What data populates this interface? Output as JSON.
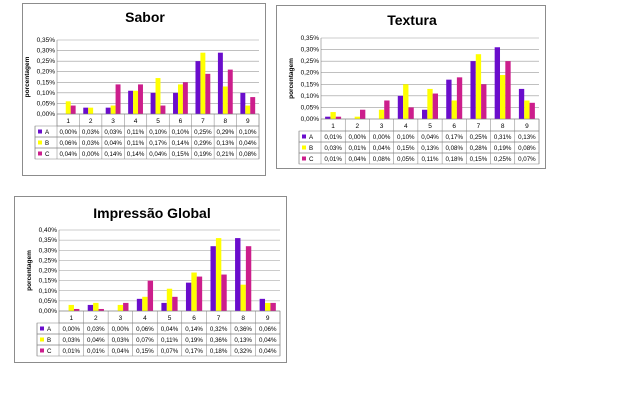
{
  "colors": {
    "A": "#6a0dcc",
    "B": "#ffff00",
    "C": "#cc1e8c"
  },
  "chart_data": [
    {
      "type": "bar",
      "title": "Sabor",
      "ylabel": "porcentagem",
      "categories": [
        "1",
        "2",
        "3",
        "4",
        "5",
        "6",
        "7",
        "8",
        "9"
      ],
      "yticks": [
        "0,00%",
        "0,05%",
        "0,10%",
        "0,15%",
        "0,20%",
        "0,25%",
        "0,30%",
        "0,35%"
      ],
      "ylim": [
        0,
        0.35
      ],
      "grid": true,
      "series": [
        {
          "name": "A",
          "values": [
            0.0,
            0.03,
            0.03,
            0.11,
            0.1,
            0.1,
            0.25,
            0.29,
            0.1
          ],
          "labels": [
            "0,00%",
            "0,03%",
            "0,03%",
            "0,11%",
            "0,10%",
            "0,10%",
            "0,25%",
            "0,29%",
            "0,10%"
          ]
        },
        {
          "name": "B",
          "values": [
            0.06,
            0.03,
            0.04,
            0.11,
            0.17,
            0.14,
            0.29,
            0.13,
            0.04
          ],
          "labels": [
            "0,06%",
            "0,03%",
            "0,04%",
            "0,11%",
            "0,17%",
            "0,14%",
            "0,29%",
            "0,13%",
            "0,04%"
          ]
        },
        {
          "name": "C",
          "values": [
            0.04,
            0.0,
            0.14,
            0.14,
            0.04,
            0.15,
            0.19,
            0.21,
            0.08
          ],
          "labels": [
            "0,04%",
            "0,00%",
            "0,14%",
            "0,14%",
            "0,04%",
            "0,15%",
            "0,19%",
            "0,21%",
            "0,08%"
          ]
        }
      ]
    },
    {
      "type": "bar",
      "title": "Textura",
      "ylabel": "porcentagem",
      "categories": [
        "1",
        "2",
        "3",
        "4",
        "5",
        "6",
        "7",
        "8",
        "9"
      ],
      "yticks": [
        "0,00%",
        "0,05%",
        "0,10%",
        "0,15%",
        "0,20%",
        "0,25%",
        "0,30%",
        "0,35%"
      ],
      "ylim": [
        0,
        0.35
      ],
      "grid": true,
      "series": [
        {
          "name": "A",
          "values": [
            0.01,
            0.0,
            0.0,
            0.1,
            0.04,
            0.17,
            0.25,
            0.31,
            0.13
          ],
          "labels": [
            "0,01%",
            "0,00%",
            "0,00%",
            "0,10%",
            "0,04%",
            "0,17%",
            "0,25%",
            "0,31%",
            "0,13%"
          ]
        },
        {
          "name": "B",
          "values": [
            0.03,
            0.01,
            0.04,
            0.15,
            0.13,
            0.08,
            0.28,
            0.19,
            0.08
          ],
          "labels": [
            "0,03%",
            "0,01%",
            "0,04%",
            "0,15%",
            "0,13%",
            "0,08%",
            "0,28%",
            "0,19%",
            "0,08%"
          ]
        },
        {
          "name": "C",
          "values": [
            0.01,
            0.04,
            0.08,
            0.05,
            0.11,
            0.18,
            0.15,
            0.25,
            0.07
          ],
          "labels": [
            "0,01%",
            "0,04%",
            "0,08%",
            "0,05%",
            "0,11%",
            "0,18%",
            "0,15%",
            "0,25%",
            "0,07%"
          ]
        }
      ]
    },
    {
      "type": "bar",
      "title": "Impressão Global",
      "ylabel": "porcentagem",
      "categories": [
        "1",
        "2",
        "3",
        "4",
        "5",
        "6",
        "7",
        "8",
        "9"
      ],
      "yticks": [
        "0,00%",
        "0,05%",
        "0,10%",
        "0,15%",
        "0,20%",
        "0,25%",
        "0,30%",
        "0,35%",
        "0,40%"
      ],
      "ylim": [
        0,
        0.4
      ],
      "grid": true,
      "series": [
        {
          "name": "A",
          "values": [
            0.0,
            0.03,
            0.0,
            0.06,
            0.04,
            0.14,
            0.32,
            0.36,
            0.06
          ],
          "labels": [
            "0,00%",
            "0,03%",
            "0,00%",
            "0,06%",
            "0,04%",
            "0,14%",
            "0,32%",
            "0,36%",
            "0,06%"
          ]
        },
        {
          "name": "B",
          "values": [
            0.03,
            0.04,
            0.03,
            0.07,
            0.11,
            0.19,
            0.36,
            0.13,
            0.04
          ],
          "labels": [
            "0,03%",
            "0,04%",
            "0,03%",
            "0,07%",
            "0,11%",
            "0,19%",
            "0,36%",
            "0,13%",
            "0,04%"
          ]
        },
        {
          "name": "C",
          "values": [
            0.01,
            0.01,
            0.04,
            0.15,
            0.07,
            0.17,
            0.18,
            0.32,
            0.04
          ],
          "labels": [
            "0,01%",
            "0,01%",
            "0,04%",
            "0,15%",
            "0,07%",
            "0,17%",
            "0,18%",
            "0,32%",
            "0,04%"
          ]
        }
      ]
    }
  ]
}
